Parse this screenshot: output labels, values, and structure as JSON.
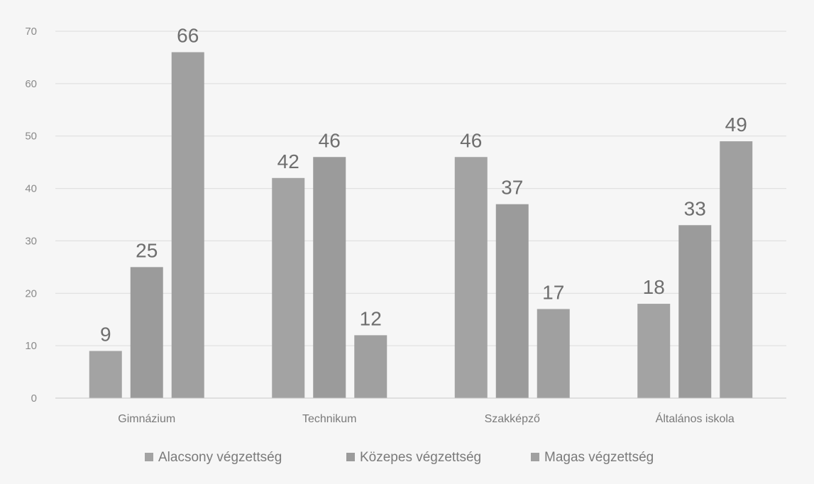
{
  "chart_data": {
    "type": "bar",
    "categories": [
      "Gimnázium",
      "Technikum",
      "Szakképző",
      "Általános iskola"
    ],
    "series": [
      {
        "name": "Alacsony végzettség",
        "values": [
          9,
          42,
          46,
          18
        ],
        "color": "#a3a3a3"
      },
      {
        "name": "Közepes végzettség",
        "values": [
          25,
          46,
          37,
          33
        ],
        "color": "#9b9b9b"
      },
      {
        "name": "Magas végzettség",
        "values": [
          66,
          12,
          17,
          49
        ],
        "color": "#a0a0a0"
      }
    ],
    "yticks": [
      0,
      10,
      20,
      30,
      40,
      50,
      60,
      70
    ],
    "ylim": [
      0,
      70
    ],
    "grid": true,
    "legend_position": "bottom",
    "title": "",
    "xlabel": "",
    "ylabel": ""
  }
}
